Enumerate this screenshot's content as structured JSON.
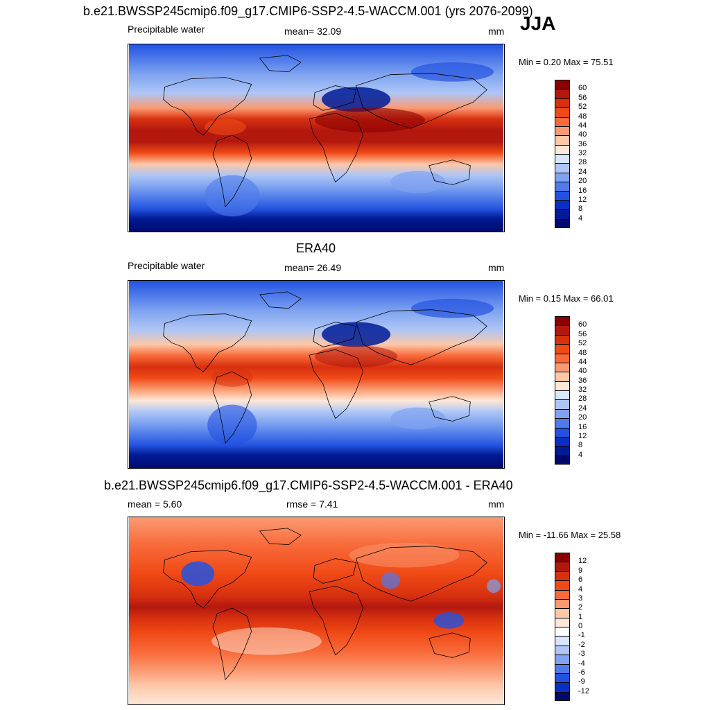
{
  "panel1": {
    "title": "b.e21.BWSSP245cmip6.f09_g17.CMIP6-SSP2-4.5-WACCM.001 (yrs 2076-2099)",
    "season": "JJA",
    "variable": "Precipitable water",
    "stat": "mean=  32.09",
    "units": "mm",
    "minmax": "Min =   0.20 Max =  75.51"
  },
  "panel2": {
    "title": "ERA40",
    "variable": "Precipitable water",
    "stat": "mean=  26.49",
    "units": "mm",
    "minmax": "Min =   0.15 Max =  66.01"
  },
  "panel3": {
    "title": "b.e21.BWSSP245cmip6.f09_g17.CMIP6-SSP2-4.5-WACCM.001 - ERA40",
    "stat_mean": "mean =   5.60",
    "stat_rmse": "rmse =   7.41",
    "units": "mm",
    "minmax": "Min = -11.66 Max =  25.58"
  },
  "chart_data": [
    {
      "type": "heatmap",
      "title": "b.e21.BWSSP245cmip6.f09_g17.CMIP6-SSP2-4.5-WACCM.001 (yrs 2076-2099)",
      "variable": "Precipitable water",
      "season": "JJA",
      "units": "mm",
      "mean": 32.09,
      "min": 0.2,
      "max": 75.51,
      "colorbar_levels": [
        "60",
        "56",
        "52",
        "48",
        "44",
        "40",
        "36",
        "32",
        "28",
        "24",
        "20",
        "16",
        "12",
        "8",
        "4"
      ],
      "colorbar_colors": [
        "#8b0000",
        "#b3180f",
        "#d7300f",
        "#f04a16",
        "#f86a3a",
        "#fb9a72",
        "#fdc7a8",
        "#fde8d8",
        "#d9e6fb",
        "#adc6f6",
        "#7fa3f0",
        "#4f7bea",
        "#2352e0",
        "#0a2fc7",
        "#001b96",
        "#000a6e"
      ]
    },
    {
      "type": "heatmap",
      "title": "ERA40",
      "variable": "Precipitable water",
      "units": "mm",
      "mean": 26.49,
      "min": 0.15,
      "max": 66.01,
      "colorbar_levels": [
        "60",
        "56",
        "52",
        "48",
        "44",
        "40",
        "36",
        "32",
        "28",
        "24",
        "20",
        "16",
        "12",
        "8",
        "4"
      ],
      "colorbar_colors": [
        "#8b0000",
        "#b3180f",
        "#d7300f",
        "#f04a16",
        "#f86a3a",
        "#fb9a72",
        "#fdc7a8",
        "#fde8d8",
        "#d9e6fb",
        "#adc6f6",
        "#7fa3f0",
        "#4f7bea",
        "#2352e0",
        "#0a2fc7",
        "#001b96",
        "#000a6e"
      ]
    },
    {
      "type": "heatmap",
      "title": "b.e21.BWSSP245cmip6.f09_g17.CMIP6-SSP2-4.5-WACCM.001 - ERA40",
      "units": "mm",
      "mean": 5.6,
      "rmse": 7.41,
      "min": -11.66,
      "max": 25.58,
      "colorbar_levels": [
        "12",
        "9",
        "6",
        "4",
        "3",
        "2",
        "1",
        "0",
        "-1",
        "-2",
        "-3",
        "-4",
        "-6",
        "-9",
        "-12"
      ],
      "colorbar_colors": [
        "#8b0000",
        "#b3180f",
        "#d7300f",
        "#f04a16",
        "#f86a3a",
        "#fb9a72",
        "#fdc7a8",
        "#fde8d8",
        "#ffffff",
        "#d9e6fb",
        "#adc6f6",
        "#7fa3f0",
        "#4f7bea",
        "#2352e0",
        "#0a2fc7",
        "#000a6e"
      ]
    }
  ]
}
